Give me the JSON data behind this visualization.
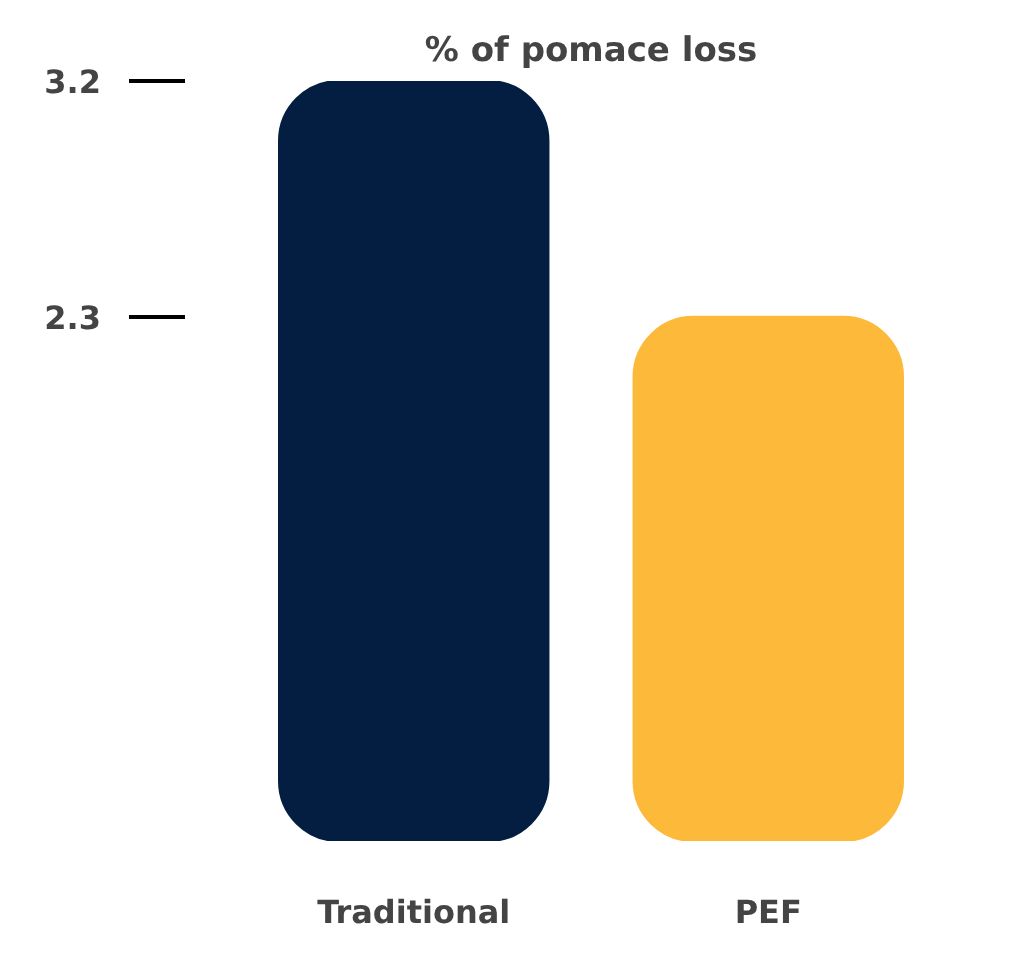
{
  "chart_data": {
    "type": "bar",
    "title": "% of pomace loss",
    "categories": [
      "Traditional",
      "PEF"
    ],
    "values": [
      3.2,
      2.3
    ],
    "colors": [
      "#041e42",
      "#fdb93a"
    ],
    "ylim": [
      0.3,
      3.2
    ],
    "yticks": [
      2.3,
      3.2
    ],
    "grid": false
  }
}
